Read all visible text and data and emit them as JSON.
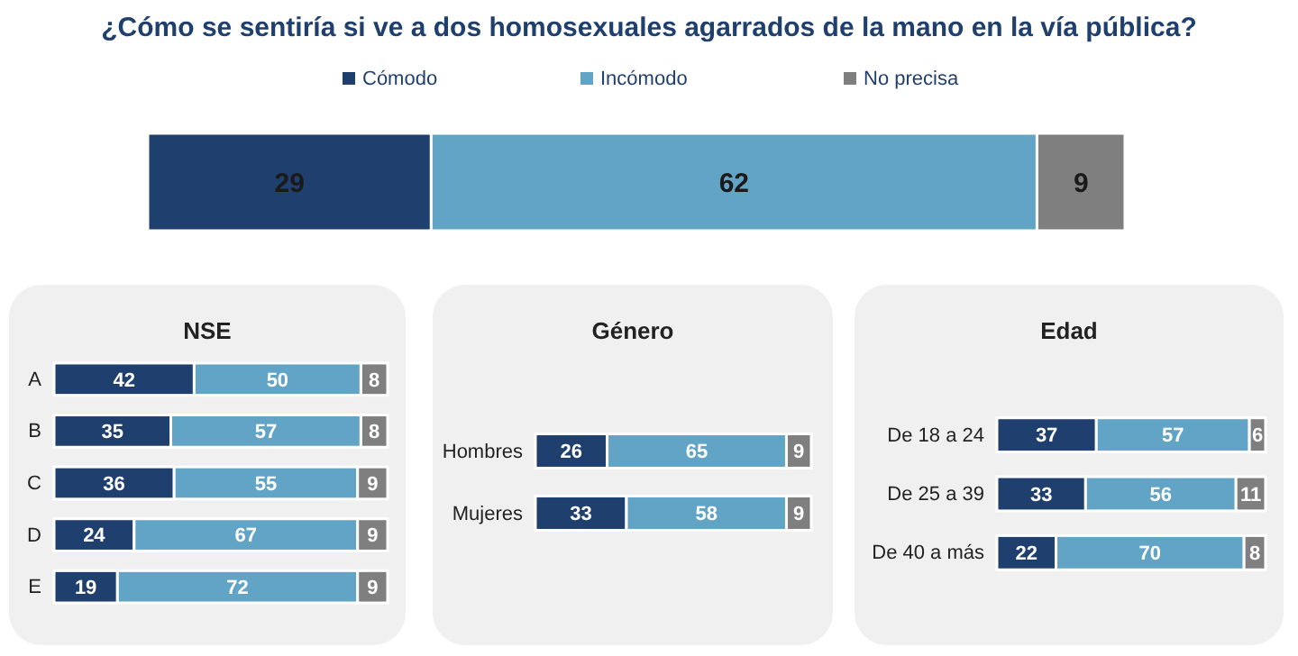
{
  "chart_data": [
    {
      "type": "bar",
      "orientation": "horizontal",
      "stacked": true,
      "title": "¿Cómo se sentiría si ve a dos homosexuales agarrados de la mano en la vía pública?",
      "categories": [
        null
      ],
      "xlim": [
        0,
        100
      ],
      "tick_labels": false,
      "legend": "top",
      "data_labels": true,
      "series": [
        {
          "name": "Cómodo",
          "color": "#1f3f6e",
          "values": [
            29
          ]
        },
        {
          "name": "Incómodo",
          "color": "#62a4c6",
          "values": [
            62
          ]
        },
        {
          "name": "No precisa",
          "color": "#7f7f7f",
          "values": [
            9
          ]
        }
      ]
    },
    {
      "type": "bar",
      "orientation": "horizontal",
      "stacked": true,
      "title": "NSE",
      "categories": [
        "A",
        "B",
        "C",
        "D",
        "E"
      ],
      "xlim": [
        0,
        100
      ],
      "tick_labels": "y",
      "data_labels": true,
      "series": [
        {
          "color": "#1f3f6e",
          "values": [
            42,
            35,
            36,
            24,
            19
          ]
        },
        {
          "color": "#62a4c6",
          "values": [
            50,
            57,
            55,
            67,
            72
          ]
        },
        {
          "color": "#7f7f7f",
          "values": [
            8,
            8,
            9,
            9,
            9
          ]
        }
      ]
    },
    {
      "type": "bar",
      "orientation": "horizontal",
      "stacked": true,
      "title": "Género",
      "categories": [
        "Hombres",
        "Mujeres"
      ],
      "xlim": [
        0,
        100
      ],
      "tick_labels": "y",
      "data_labels": true,
      "series": [
        {
          "color": "#1f3f6e",
          "values": [
            26,
            33
          ]
        },
        {
          "color": "#62a4c6",
          "values": [
            65,
            58
          ]
        },
        {
          "color": "#7f7f7f",
          "values": [
            9,
            9
          ]
        }
      ]
    },
    {
      "type": "bar",
      "orientation": "horizontal",
      "stacked": true,
      "title": "Edad",
      "categories": [
        "De 18 a 24",
        "De 25 a 39",
        "De 40 a más"
      ],
      "xlim": [
        0,
        100
      ],
      "tick_labels": "y",
      "data_labels": true,
      "series": [
        {
          "color": "#1f3f6e",
          "values": [
            37,
            33,
            22
          ]
        },
        {
          "color": "#62a4c6",
          "values": [
            57,
            56,
            70
          ]
        },
        {
          "color": "#7f7f7f",
          "values": [
            6,
            11,
            8
          ]
        }
      ]
    }
  ]
}
